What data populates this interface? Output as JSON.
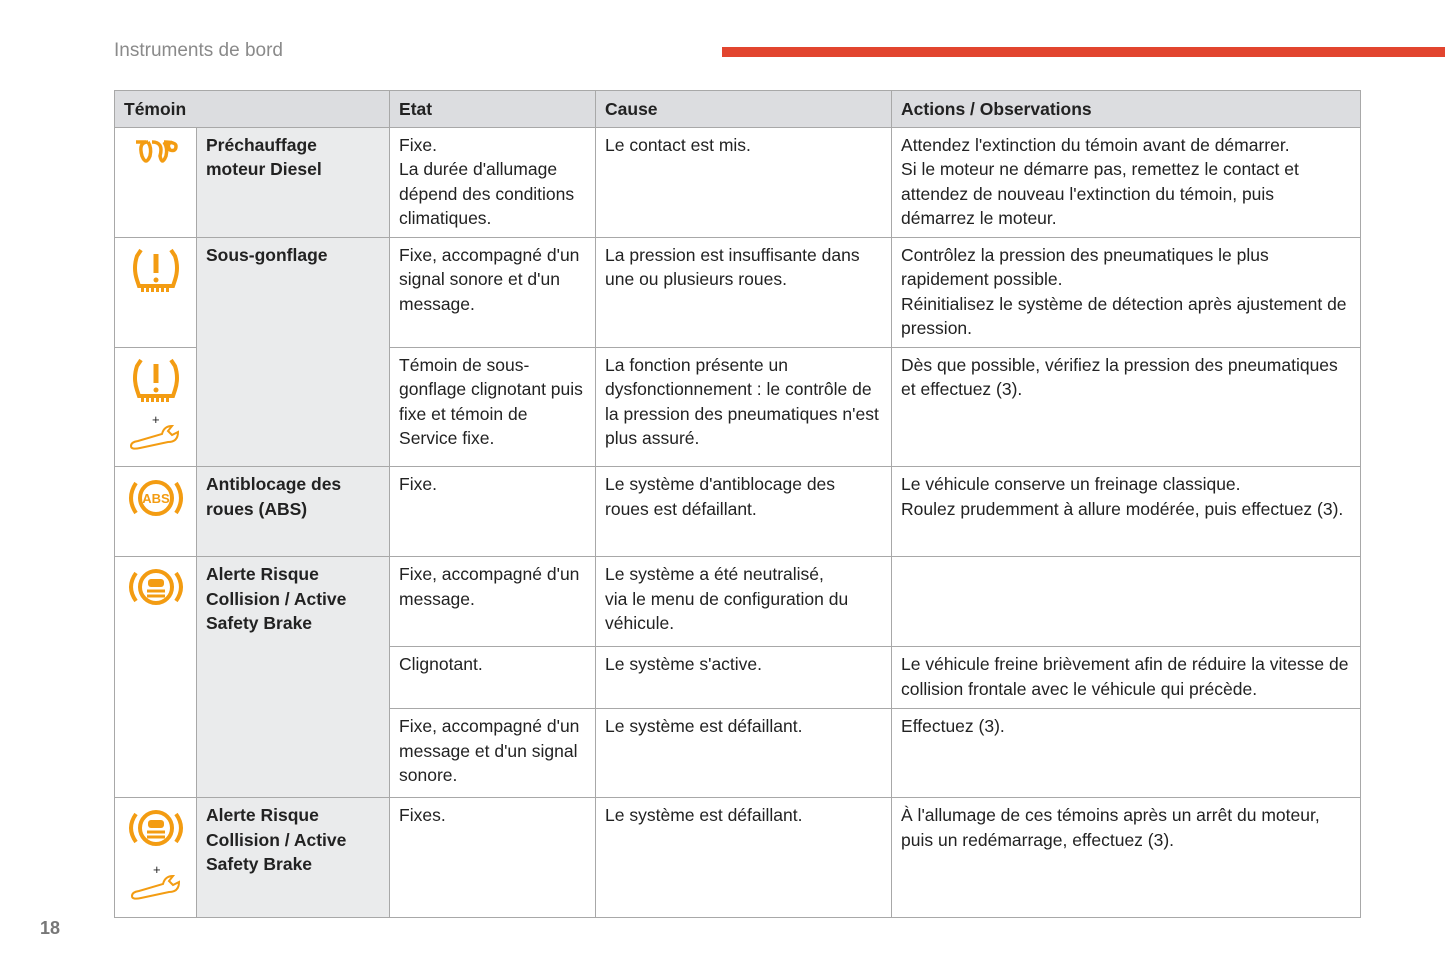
{
  "header": {
    "section": "Instruments de bord",
    "page": "18"
  },
  "accent": "#e2452f",
  "icon_color": "#f39c12",
  "columns": [
    "Témoin",
    "Etat",
    "Cause",
    "Actions / Observations"
  ],
  "rows": [
    {
      "icon": "preheat-coil-icon",
      "name": "Préchauffage moteur Diesel",
      "etat": [
        "Fixe.",
        "La durée d'allumage dépend des conditions climatiques."
      ],
      "cause": [
        "Le contact est mis."
      ],
      "actions": [
        "Attendez l'extinction du témoin avant de démarrer.",
        "Si le moteur ne démarre pas, remettez le contact et attendez de nouveau l'extinction du témoin, puis démarrez le moteur."
      ]
    },
    {
      "icon": "tyre-pressure-icon",
      "name": "Sous-gonflage",
      "etat": [
        "Fixe, accompagné d'un signal sonore et d'un message."
      ],
      "cause": [
        "La pression est insuffisante dans une ou plusieurs roues."
      ],
      "actions": [
        "Contrôlez la pression des pneumatiques le plus rapidement possible.",
        "Réinitialisez le système de détection après ajustement de pression."
      ]
    },
    {
      "icon": "tyre-pressure-service-icon",
      "etat": [
        "Témoin de sous-gonflage clignotant puis fixe et témoin de Service fixe."
      ],
      "cause": [
        "La fonction présente un dysfonctionnement : le contrôle de la pression des pneumatiques n'est plus assuré."
      ],
      "actions": [
        "Dès que possible, vérifiez la pression des pneumatiques et effectuez (3)."
      ]
    },
    {
      "icon": "abs-icon",
      "abs_text": "ABS",
      "name": "Antiblocage des roues (ABS)",
      "etat": [
        "Fixe."
      ],
      "cause": [
        "Le système d'antiblocage des roues est défaillant."
      ],
      "actions": [
        "Le véhicule conserve un freinage classique.",
        "Roulez prudemment à allure modérée, puis effectuez (3)."
      ]
    },
    {
      "icon": "collision-alert-icon",
      "name": "Alerte Risque Collision / Active Safety Brake",
      "etat": [
        "Fixe, accompagné d'un message."
      ],
      "cause": [
        "Le système a été neutralisé,",
        "via le menu de configuration du véhicule."
      ],
      "actions": [
        ""
      ]
    },
    {
      "etat": [
        "Clignotant."
      ],
      "cause": [
        "Le système s'active."
      ],
      "actions": [
        "Le véhicule freine brièvement afin de réduire la vitesse de collision frontale avec le véhicule qui précède."
      ]
    },
    {
      "etat": [
        "Fixe, accompagné d'un message et d'un signal sonore."
      ],
      "cause": [
        "Le système est défaillant."
      ],
      "actions": [
        "Effectuez (3)."
      ]
    },
    {
      "icon": "collision-alert-service-icon",
      "name": "Alerte Risque Collision / Active Safety Brake",
      "etat": [
        "Fixes."
      ],
      "cause": [
        "Le système est défaillant."
      ],
      "actions": [
        "À l'allumage de ces témoins après un arrêt du moteur, puis un redémarrage, effectuez (3)."
      ]
    }
  ]
}
